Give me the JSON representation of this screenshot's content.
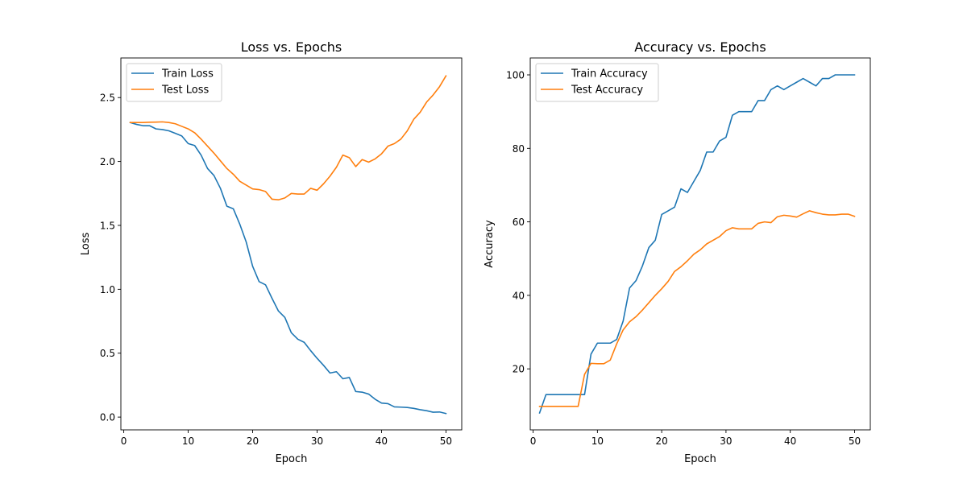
{
  "colors": {
    "train": "#1f77b4",
    "test": "#ff7f0e"
  },
  "chart_data": [
    {
      "type": "line",
      "title": "Loss vs. Epochs",
      "xlabel": "Epoch",
      "ylabel": "Loss",
      "xlim": [
        -0.45,
        52.45
      ],
      "ylim": [
        -0.1,
        2.81
      ],
      "xticks": [
        0,
        10,
        20,
        30,
        40,
        50
      ],
      "yticks": [
        0.0,
        0.5,
        1.0,
        1.5,
        2.0,
        2.5
      ],
      "ytick_labels": [
        "0.0",
        "0.5",
        "1.0",
        "1.5",
        "2.0",
        "2.5"
      ],
      "legend": "upper-left",
      "grid": false,
      "x": [
        1,
        2,
        3,
        4,
        5,
        6,
        7,
        8,
        9,
        10,
        11,
        12,
        13,
        14,
        15,
        16,
        17,
        18,
        19,
        20,
        21,
        22,
        23,
        24,
        25,
        26,
        27,
        28,
        29,
        30,
        31,
        32,
        33,
        34,
        35,
        36,
        37,
        38,
        39,
        40,
        41,
        42,
        43,
        44,
        45,
        46,
        47,
        48,
        49,
        50
      ],
      "series": [
        {
          "name": "Train Loss",
          "color": "#1f77b4",
          "values": [
            2.305,
            2.29,
            2.28,
            2.28,
            2.255,
            2.25,
            2.24,
            2.22,
            2.2,
            2.14,
            2.125,
            2.05,
            1.945,
            1.89,
            1.79,
            1.65,
            1.63,
            1.51,
            1.37,
            1.18,
            1.06,
            1.035,
            0.93,
            0.83,
            0.78,
            0.66,
            0.61,
            0.585,
            0.52,
            0.46,
            0.405,
            0.345,
            0.355,
            0.3,
            0.31,
            0.2,
            0.195,
            0.18,
            0.14,
            0.11,
            0.105,
            0.08,
            0.078,
            0.075,
            0.068,
            0.058,
            0.05,
            0.038,
            0.04,
            0.028
          ]
        },
        {
          "name": "Test Loss",
          "color": "#ff7f0e",
          "values": [
            2.305,
            2.305,
            2.305,
            2.307,
            2.308,
            2.31,
            2.305,
            2.295,
            2.275,
            2.255,
            2.225,
            2.175,
            2.12,
            2.065,
            2.005,
            1.945,
            1.9,
            1.845,
            1.815,
            1.785,
            1.78,
            1.765,
            1.705,
            1.7,
            1.715,
            1.75,
            1.745,
            1.745,
            1.79,
            1.775,
            1.825,
            1.885,
            1.955,
            2.05,
            2.03,
            1.96,
            2.015,
            1.995,
            2.02,
            2.06,
            2.12,
            2.14,
            2.175,
            2.24,
            2.33,
            2.385,
            2.465,
            2.52,
            2.585,
            2.67
          ]
        }
      ]
    },
    {
      "type": "line",
      "title": "Accuracy vs. Epochs",
      "xlabel": "Epoch",
      "ylabel": "Accuracy",
      "xlim": [
        -0.45,
        52.45
      ],
      "ylim": [
        3.4,
        104.6
      ],
      "xticks": [
        0,
        10,
        20,
        30,
        40,
        50
      ],
      "yticks": [
        20,
        40,
        60,
        80,
        100
      ],
      "ytick_labels": [
        "20",
        "40",
        "60",
        "80",
        "100"
      ],
      "legend": "upper-left",
      "grid": false,
      "x": [
        1,
        2,
        3,
        4,
        5,
        6,
        7,
        8,
        9,
        10,
        11,
        12,
        13,
        14,
        15,
        16,
        17,
        18,
        19,
        20,
        21,
        22,
        23,
        24,
        25,
        26,
        27,
        28,
        29,
        30,
        31,
        32,
        33,
        34,
        35,
        36,
        37,
        38,
        39,
        40,
        41,
        42,
        43,
        44,
        45,
        46,
        47,
        48,
        49,
        50
      ],
      "series": [
        {
          "name": "Train Accuracy",
          "color": "#1f77b4",
          "values": [
            8,
            13,
            13,
            13,
            13,
            13,
            13,
            13,
            24,
            27,
            27,
            27,
            28,
            33,
            42,
            44,
            48,
            53,
            55,
            62,
            63,
            64,
            69,
            68,
            71,
            74,
            79,
            79,
            82,
            83,
            89,
            90,
            90,
            90,
            93,
            93,
            96,
            97,
            96,
            97,
            98,
            99,
            98,
            97,
            99,
            99,
            100,
            100,
            100,
            100
          ]
        },
        {
          "name": "Test Accuracy",
          "color": "#ff7f0e",
          "values": [
            9.8,
            9.8,
            9.8,
            9.8,
            9.8,
            9.8,
            9.8,
            18.5,
            21.5,
            21.4,
            21.4,
            22.4,
            26.8,
            30.6,
            32.8,
            34.2,
            36.0,
            38.0,
            40.0,
            41.8,
            43.8,
            46.5,
            47.8,
            49.4,
            51.2,
            52.4,
            54.0,
            55.0,
            56.0,
            57.6,
            58.4,
            58.1,
            58.1,
            58.1,
            59.6,
            60.0,
            59.8,
            61.4,
            61.8,
            61.6,
            61.3,
            62.2,
            63.0,
            62.5,
            62.1,
            61.9,
            61.9,
            62.1,
            62.1,
            61.5
          ]
        }
      ]
    }
  ]
}
